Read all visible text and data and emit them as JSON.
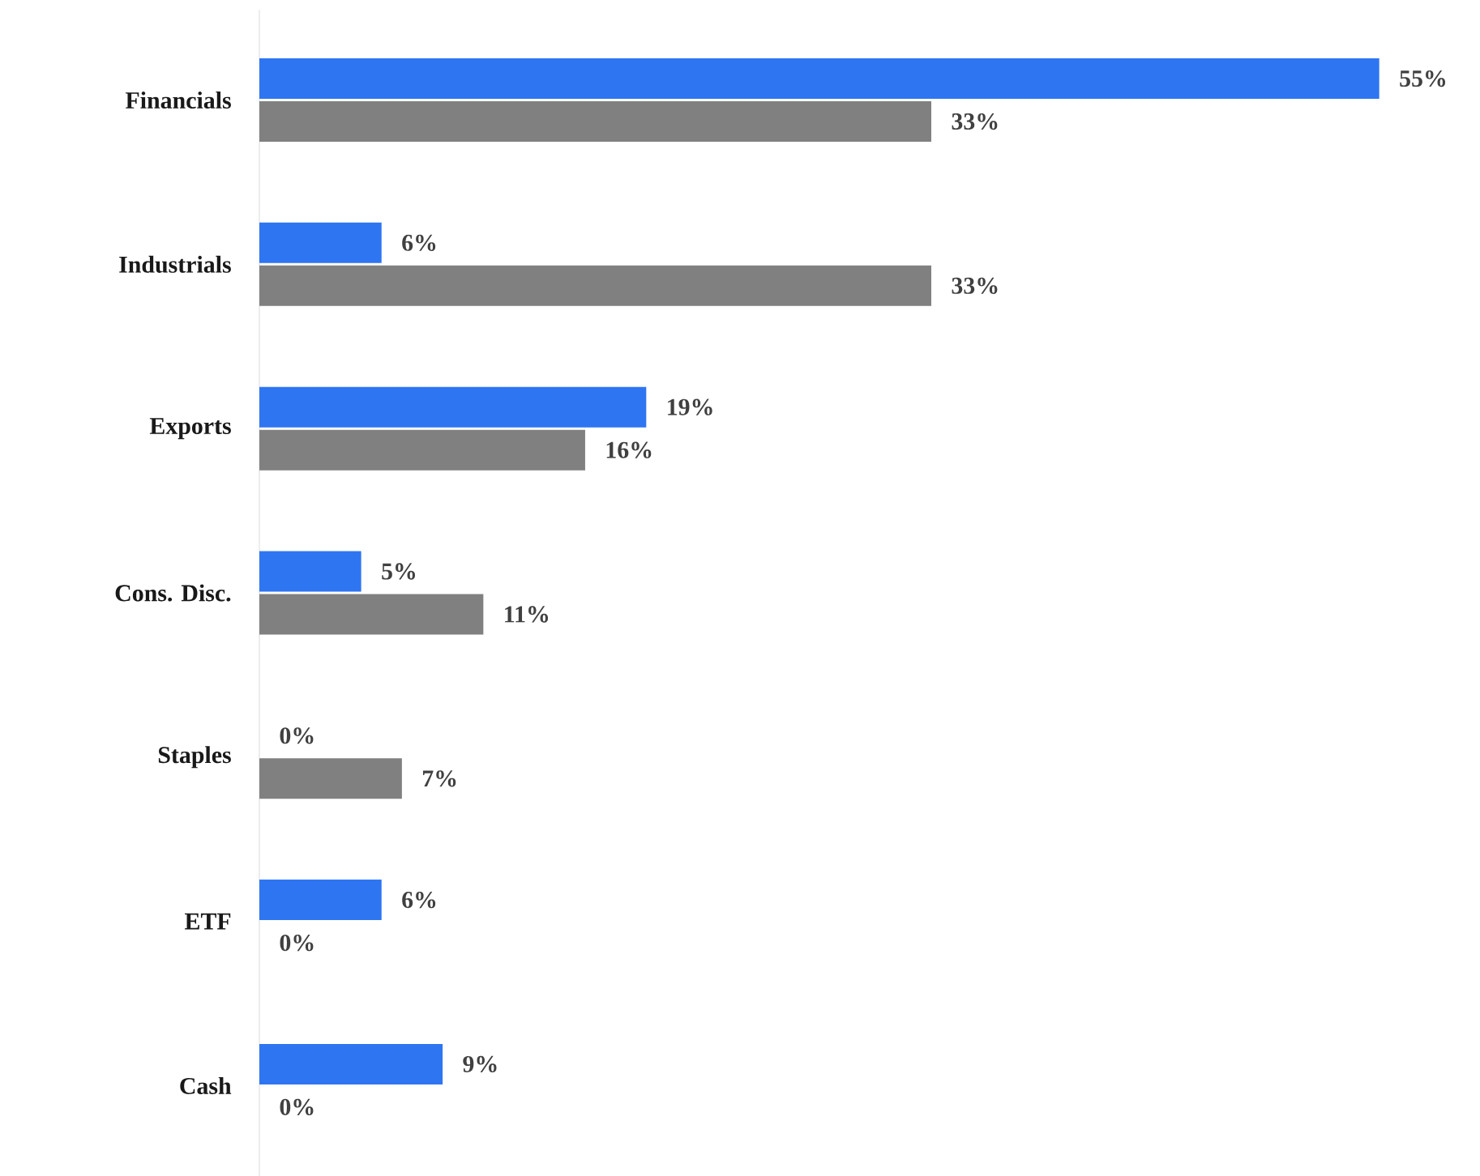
{
  "chart_data": {
    "type": "bar",
    "orientation": "horizontal",
    "categories": [
      "Financials",
      "Industrials",
      "Exports",
      "Cons. Disc.",
      "Staples",
      "ETF",
      "Cash"
    ],
    "series": [
      {
        "color": "#2e75f2",
        "values": [
          55,
          6,
          19,
          5,
          0,
          6,
          9
        ],
        "value_labels": [
          "55%",
          "6%",
          "19%",
          "5%",
          "0%",
          "6%",
          "9%"
        ]
      },
      {
        "color": "#808080",
        "values": [
          33,
          33,
          16,
          11,
          7,
          0,
          0
        ],
        "value_labels": [
          "33%",
          "33%",
          "16%",
          "11%",
          "7%",
          "0%",
          "0%"
        ]
      }
    ]
  }
}
